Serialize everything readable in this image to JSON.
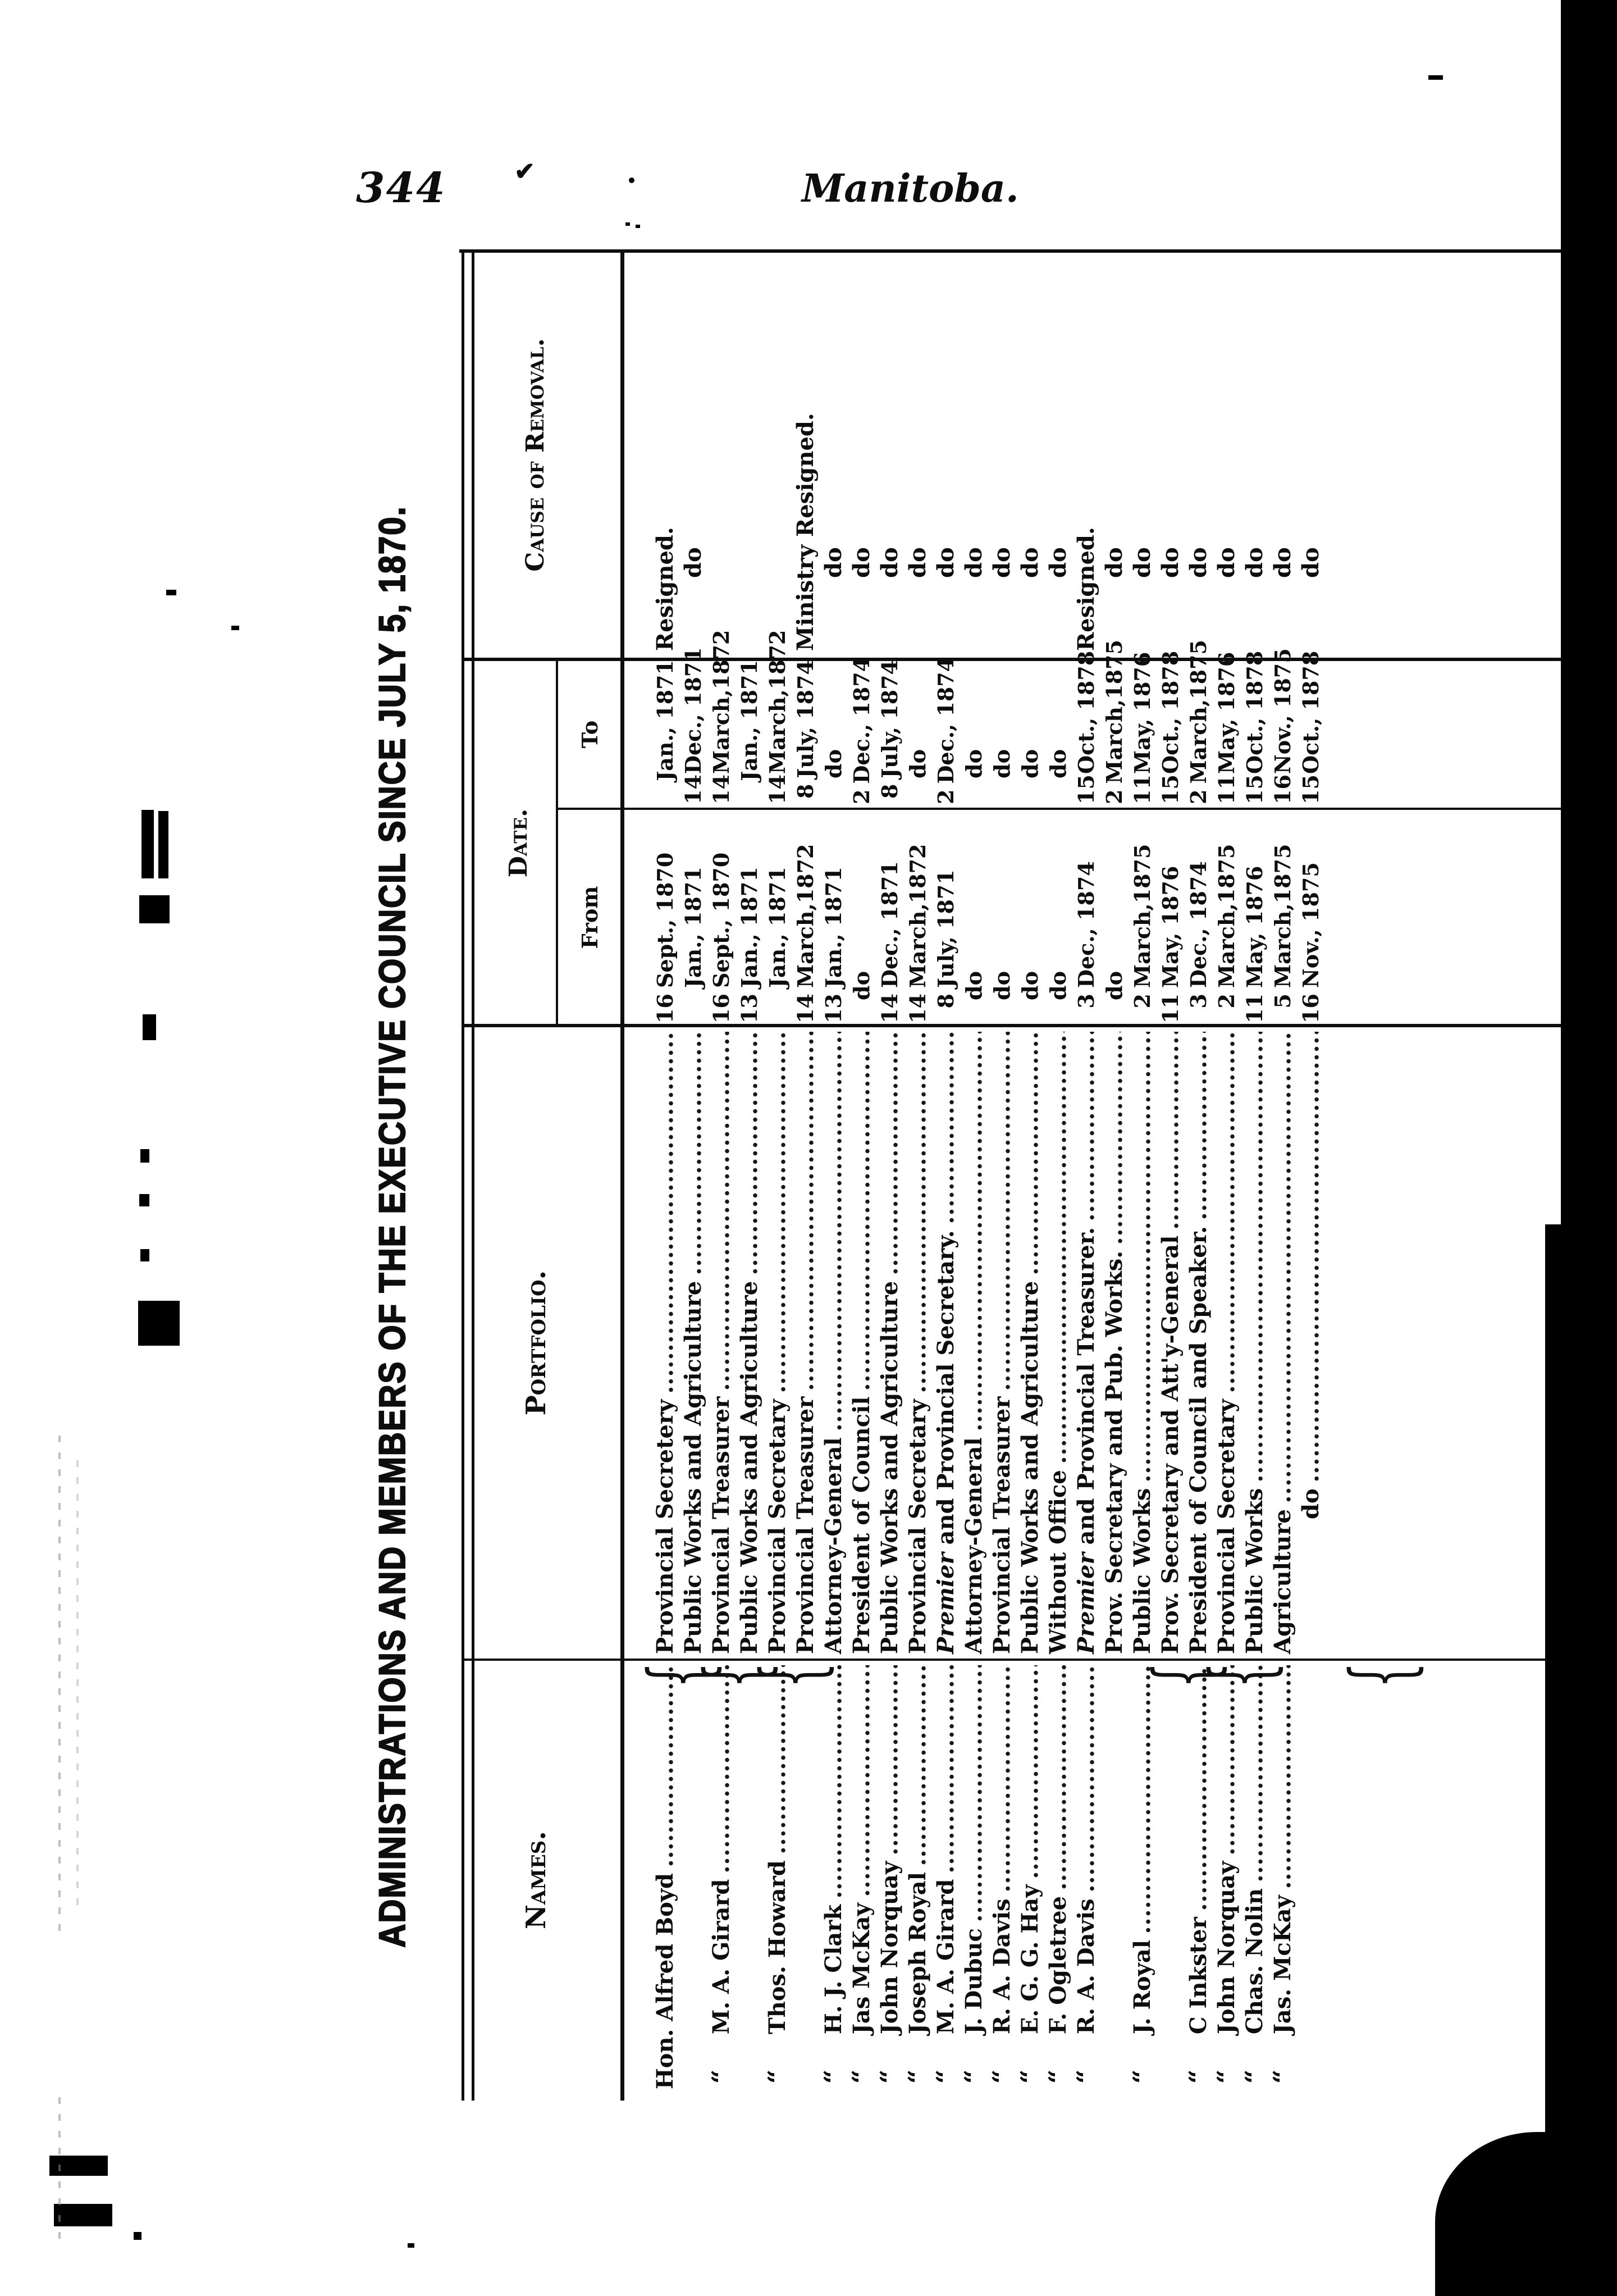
{
  "page": {
    "number": "344",
    "running_title": "Manitoba."
  },
  "table": {
    "title": "ADMINISTRATIONS AND MEMBERS OF THE EXECUTIVE COUNCIL SINCE JULY 5, 1870.",
    "headers": {
      "names": "Names.",
      "portfolio": "Portfolio.",
      "date": "Date.",
      "from": "From",
      "to": "To",
      "cause": "Cause of Removal."
    },
    "ditto_mark": "“",
    "rows": [
      {
        "name": "Hon. Alfred Boyd",
        "ditto": false,
        "brace": true,
        "portfolio": "Provincial Secretery",
        "from": "16 Sept., 1870",
        "to": "Jan., 1871",
        "cause": "Resigned."
      },
      {
        "name": "",
        "ditto": false,
        "brace": false,
        "portfolio": "Public Works and Agriculture",
        "from": "Jan., 1871",
        "to": "14 Dec., 1871",
        "cause": "do"
      },
      {
        "name": "M. A. Girard",
        "ditto": true,
        "brace": true,
        "portfolio": "Provincial Treasurer",
        "from": "16 Sept., 1870",
        "to": "14 March,1872",
        "cause": ""
      },
      {
        "name": "",
        "ditto": false,
        "brace": false,
        "portfolio": "Public Works and Agriculture",
        "from": "13 Jan., 1871",
        "to": "Jan., 1871",
        "cause": ""
      },
      {
        "name": "Thos. Howard",
        "ditto": true,
        "brace": true,
        "portfolio": "Provincial Secretary",
        "from": "Jan., 1871",
        "to": "14 March,1872",
        "cause": ""
      },
      {
        "name": "",
        "ditto": false,
        "brace": false,
        "portfolio": "Provincial Treasurer",
        "from": "14 March,1872",
        "to": "8 July, 1874",
        "cause": "Ministry Resigned."
      },
      {
        "name": "H. J. Clark",
        "ditto": true,
        "brace": false,
        "portfolio": "Attorney-General",
        "from": "13 Jan., 1871",
        "to": "do",
        "cause": "do"
      },
      {
        "name": "Jas McKay",
        "ditto": true,
        "brace": false,
        "portfolio": "President of Council",
        "from": "do",
        "to": "2 Dec., 1874",
        "cause": "do"
      },
      {
        "name": "John Norquay",
        "ditto": true,
        "brace": false,
        "portfolio": "Public Works and Agriculture",
        "from": "14 Dec., 1871",
        "to": "8 July, 1874",
        "cause": "do"
      },
      {
        "name": "Joseph Royal",
        "ditto": true,
        "brace": false,
        "portfolio": "Provincial Secretary",
        "from": "14 March,1872",
        "to": "do",
        "cause": "do"
      },
      {
        "name": "M. A. Girard",
        "ditto": true,
        "brace": false,
        "gap": 1,
        "italic_first_word": true,
        "portfolio": "Premier and Provincial Secretary.",
        "from": "8 July, 1871",
        "to": "2 Dec., 1874",
        "cause": "do"
      },
      {
        "name": "J. Dubuc",
        "ditto": true,
        "brace": false,
        "portfolio": "Attorney-General",
        "from": "do",
        "to": "do",
        "cause": "do"
      },
      {
        "name": "R. A. Davis",
        "ditto": true,
        "brace": false,
        "portfolio": "Provincial Treasurer",
        "from": "do",
        "to": "do",
        "cause": "do"
      },
      {
        "name": "E. G. G. Hay",
        "ditto": true,
        "brace": false,
        "portfolio": "Public Works and Agriculture",
        "from": "do",
        "to": "do",
        "cause": "do"
      },
      {
        "name": "F. Ogletree",
        "ditto": true,
        "brace": false,
        "portfolio": "Without Office",
        "from": "do",
        "to": "do",
        "cause": "do"
      },
      {
        "name": "R. A. Davis",
        "ditto": true,
        "brace": true,
        "gap": 2,
        "italic_first_word": true,
        "portfolio": "Premier and Provincial Treasurer.",
        "from": "3 Dec., 1874",
        "to": "15 Oct., 1878",
        "cause": "Resigned."
      },
      {
        "name": "",
        "ditto": false,
        "brace": false,
        "portfolio": "Prov. Secretary and Pub. Works.",
        "from": "do",
        "to": "2 March,1875",
        "cause": "do"
      },
      {
        "name": "J. Royal",
        "ditto": true,
        "brace": true,
        "portfolio": "Public Works",
        "from": "2 March,1875",
        "to": "11 May, 1876",
        "cause": "do"
      },
      {
        "name": "",
        "ditto": false,
        "brace": false,
        "portfolio": "Prov. Secretary and Att'y-General",
        "from": "11 May, 1876",
        "to": "15 Oct., 1878",
        "cause": "do"
      },
      {
        "name": "C Inkster",
        "ditto": true,
        "brace": false,
        "portfolio": "President of Council and Speaker.",
        "from": "3 Dec., 1874",
        "to": "2 March,1875",
        "cause": "do"
      },
      {
        "name": "John Norquay",
        "ditto": true,
        "brace": false,
        "portfolio": "Provincial Secretary",
        "from": "2 March,1875",
        "to": "11 May, 1876",
        "cause": "do"
      },
      {
        "name": "Chas. Nolin",
        "ditto": true,
        "brace": false,
        "portfolio": "Public Works",
        "from": "11 May, 1876",
        "to": "15 Oct., 1878",
        "cause": "do"
      },
      {
        "name": "Jas. McKay",
        "ditto": true,
        "brace": true,
        "portfolio": "Agriculture",
        "from": "5 March,1875",
        "to": "16 Nov., 1875",
        "cause": "do"
      },
      {
        "name": "",
        "ditto": false,
        "brace": false,
        "portfolio": "do",
        "portfolio_indent": true,
        "from": "16 Nov., 1875",
        "to": "15 Oct., 1878",
        "cause": "do"
      }
    ]
  }
}
